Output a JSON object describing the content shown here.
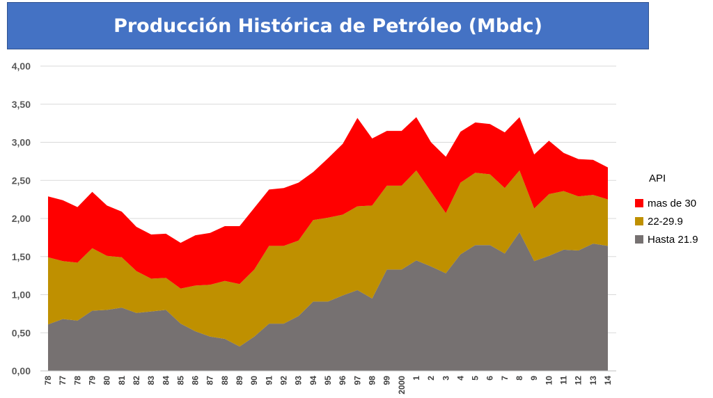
{
  "title": "Producción Histórica de Petróleo (Mbdc)",
  "legend": {
    "title": "API",
    "items": [
      {
        "label": "mas de 30",
        "color": "#FF0000"
      },
      {
        "label": "22-29.9",
        "color": "#BF9000"
      },
      {
        "label": "Hasta 21.9",
        "color": "#767171"
      }
    ]
  },
  "chart_data": {
    "type": "area",
    "stacked": true,
    "title": "Producción Histórica de Petróleo (Mbdc)",
    "categories": [
      "78",
      "77",
      "78",
      "79",
      "80",
      "81",
      "82",
      "83",
      "84",
      "85",
      "86",
      "87",
      "88",
      "89",
      "90",
      "91",
      "92",
      "93",
      "94",
      "95",
      "96",
      "97",
      "98",
      "99",
      "2000",
      "1",
      "2",
      "3",
      "4",
      "5",
      "6",
      "7",
      "8",
      "9",
      "10",
      "11",
      "12",
      "13",
      "14"
    ],
    "x_tick_labels": [
      "78",
      "77",
      "78",
      "79",
      "80",
      "81",
      "82",
      "83",
      "84",
      "85",
      "86",
      "87",
      "88",
      "89",
      "90",
      "91",
      "92",
      "93",
      "94",
      "95",
      "96",
      "97",
      "98",
      "99",
      "2000",
      "1",
      "2",
      "3",
      "4",
      "5",
      "6",
      "7",
      "8",
      "9",
      "10",
      "11",
      "12",
      "13",
      "14"
    ],
    "y_tick_labels": [
      "0,00",
      "0,50",
      "1,00",
      "1,50",
      "2,00",
      "2,50",
      "3,00",
      "3,50",
      "4,00"
    ],
    "ylim": [
      0,
      4
    ],
    "grid": true,
    "legend_position": "right",
    "series": [
      {
        "name": "Hasta 21.9",
        "color": "#767171",
        "values": [
          0.61,
          0.68,
          0.66,
          0.79,
          0.8,
          0.83,
          0.76,
          0.78,
          0.8,
          0.62,
          0.52,
          0.45,
          0.42,
          0.32,
          0.45,
          0.62,
          0.62,
          0.72,
          0.91,
          0.91,
          0.99,
          1.06,
          0.95,
          1.33,
          1.33,
          1.45,
          1.37,
          1.28,
          1.53,
          1.65,
          1.65,
          1.54,
          1.82,
          1.44,
          1.51,
          1.59,
          1.58,
          1.67,
          1.64
        ]
      },
      {
        "name": "22-29.9",
        "color": "#BF9000",
        "values": [
          0.88,
          0.76,
          0.76,
          0.82,
          0.71,
          0.66,
          0.55,
          0.43,
          0.42,
          0.46,
          0.6,
          0.68,
          0.76,
          0.82,
          0.88,
          1.02,
          1.02,
          0.99,
          1.07,
          1.1,
          1.06,
          1.1,
          1.22,
          1.1,
          1.1,
          1.18,
          0.98,
          0.79,
          0.94,
          0.95,
          0.93,
          0.86,
          0.81,
          0.69,
          0.81,
          0.77,
          0.71,
          0.64,
          0.61
        ]
      },
      {
        "name": "mas de 30",
        "color": "#FF0000",
        "values": [
          0.8,
          0.8,
          0.73,
          0.74,
          0.66,
          0.6,
          0.58,
          0.58,
          0.58,
          0.6,
          0.66,
          0.68,
          0.72,
          0.76,
          0.81,
          0.74,
          0.76,
          0.76,
          0.63,
          0.78,
          0.93,
          1.16,
          0.88,
          0.72,
          0.72,
          0.7,
          0.65,
          0.74,
          0.67,
          0.66,
          0.66,
          0.73,
          0.7,
          0.71,
          0.7,
          0.5,
          0.49,
          0.46,
          0.42
        ]
      }
    ]
  }
}
